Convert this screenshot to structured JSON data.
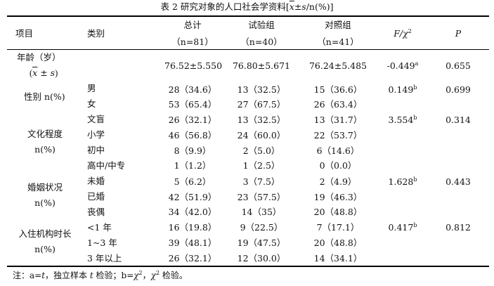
{
  "caption": {
    "prefix": "表 2  研究对象的人口社会学资料[",
    "xbar": "x",
    "pm_s": "±s",
    "suffix": "/n(%)]"
  },
  "header": {
    "col_item": "项目",
    "col_category": "类别",
    "col_total": "总计",
    "col_total_n": "（n=81）",
    "col_test": "试验组",
    "col_test_n": "（n=40）",
    "col_control": "对照组",
    "col_control_n": "（n=41）",
    "col_stat_f": "F/",
    "col_stat_chi": "χ",
    "col_stat_sup": "2",
    "col_p": "P"
  },
  "groups": {
    "age_label_1": "年龄（岁）",
    "age_label_2_x": "x",
    "age_label_2_rest": " ± s",
    "sex_label": "性别 n(%)",
    "edu_label_1": "文化程度",
    "edu_label_2": "n(%)",
    "marriage_label_1": "婚姻状况",
    "marriage_label_2": "n(%)",
    "stay_label_1": "入住机构时长",
    "stay_label_2": "n(%)"
  },
  "rows": {
    "age": {
      "total": "76.52±5.550",
      "test": "76.80±5.671",
      "control": "76.24±5.485",
      "stat": "-0.449",
      "stat_sup": "a",
      "p": "0.655"
    },
    "male": {
      "category": "男",
      "total": "28（34.6）",
      "test": "13（32.5）",
      "control": "15（36.6）",
      "stat": "0.149",
      "stat_sup": "b",
      "p": "0.699"
    },
    "female": {
      "category": "女",
      "total": "53（65.4）",
      "test": "27（67.5）",
      "control": "26（63.4）"
    },
    "illiterate": {
      "category": "文盲",
      "total": "26（32.1）",
      "test": "13（32.5）",
      "control": "13（31.7）",
      "stat": "3.554",
      "stat_sup": "b",
      "p": "0.314"
    },
    "primary": {
      "category": "小学",
      "total": "46（56.8）",
      "test": "24（60.0）",
      "control": "22（53.7）"
    },
    "junior": {
      "category": "初中",
      "total": "8（9.9）",
      "test": "2（5.0）",
      "control": "6（14.6）"
    },
    "senior": {
      "category": "高中/中专",
      "total": "1（1.2）",
      "test": "1（2.5）",
      "control": "0（0.0）"
    },
    "unmarried": {
      "category": "未婚",
      "total": "5（6.2）",
      "test": "3（7.5）",
      "control": "2（4.9）",
      "stat": "1.628",
      "stat_sup": "b",
      "p": "0.443"
    },
    "married": {
      "category": "已婚",
      "total": "42（51.9）",
      "test": "23（57.5）",
      "control": "19（46.3）"
    },
    "widowed": {
      "category": "丧偶",
      "total": "34（42.0）",
      "test": "14（35）",
      "control": "20（48.8）"
    },
    "lt1": {
      "category": "<1 年",
      "total": "16（19.8）",
      "test": "9（22.5）",
      "control": "7（17.1）",
      "stat": "0.417",
      "stat_sup": "b",
      "p": "0.812"
    },
    "y1to3": {
      "category": "1~3 年",
      "total": "39（48.1）",
      "test": "19（47.5）",
      "control": "20（48.8）"
    },
    "gt3": {
      "category": "3 年以上",
      "total": "26（32.1）",
      "test": "12（30.0）",
      "control": "14（34.1）"
    }
  },
  "note": {
    "prefix": "注：a=",
    "t1": "t",
    "mid1": "，独立样本 ",
    "t2": "t",
    "mid2": " 检验；b=",
    "chi1": "χ",
    "sup1": "2",
    "mid3": "，",
    "chi2": "χ",
    "sup2": "2",
    "suffix": " 检验。"
  }
}
